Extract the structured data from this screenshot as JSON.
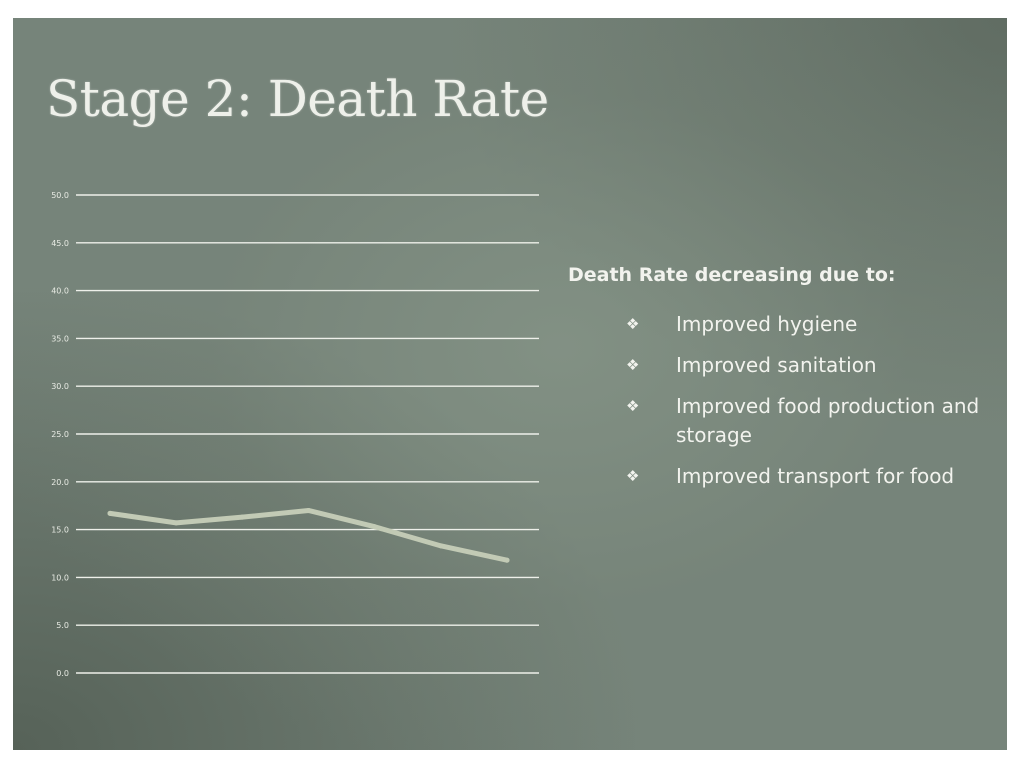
{
  "slide": {
    "title": "Stage 2: Death Rate",
    "heading": "Death Rate decreasing due to:",
    "bullet_glyph": "❖",
    "items": [
      "Improved hygiene",
      "Improved sanitation",
      "Improved food production and storage",
      "Improved transport for food"
    ]
  },
  "chart_data": {
    "type": "line",
    "title": "",
    "xlabel": "",
    "ylabel": "",
    "x": [
      1,
      2,
      3,
      4,
      5,
      6,
      7
    ],
    "series": [
      {
        "values": [
          16.7,
          15.7,
          16.3,
          17.0,
          15.3,
          13.3,
          11.8
        ]
      }
    ],
    "ylim": [
      0,
      50
    ],
    "yticks": [
      "0.0",
      "5.0",
      "10.0",
      "15.0",
      "20.0",
      "25.0",
      "30.0",
      "35.0",
      "40.0",
      "45.0",
      "50.0"
    ],
    "grid": true,
    "legend": "none",
    "colors": {
      "line": "#c2cab5",
      "grid": "#eef0ea",
      "text": "#e8ebe4"
    }
  }
}
